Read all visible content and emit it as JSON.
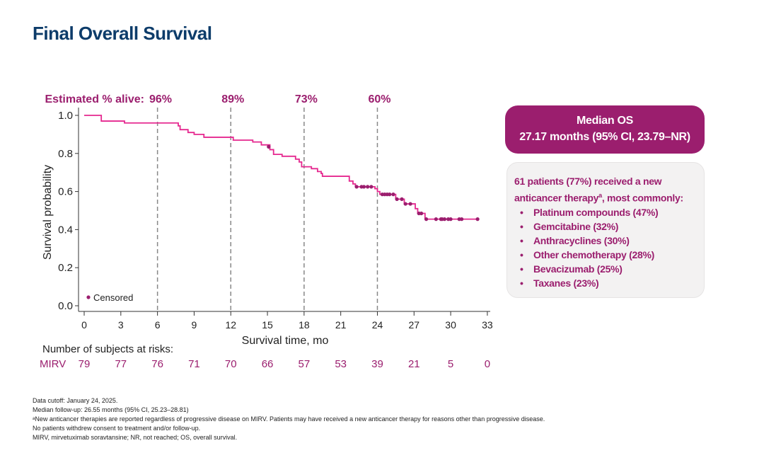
{
  "title": "Final Overall Survival",
  "chart_data": {
    "type": "line",
    "subtype": "kaplan-meier",
    "xlabel": "Survival time, mo",
    "ylabel": "Survival probability",
    "xlim": [
      0,
      33
    ],
    "ylim": [
      0,
      1
    ],
    "xticks": [
      0,
      3,
      6,
      9,
      12,
      15,
      18,
      21,
      24,
      27,
      30,
      33
    ],
    "yticks": [
      "0.0",
      "0.2",
      "0.4",
      "0.6",
      "0.8",
      "1.0"
    ],
    "grid": false,
    "line_color": "#e5288f",
    "censor_color": "#9b1e6e",
    "steps": [
      [
        0,
        1.0
      ],
      [
        1.4,
        0.97
      ],
      [
        3.3,
        0.96
      ],
      [
        7.7,
        0.945
      ],
      [
        7.85,
        0.925
      ],
      [
        8.5,
        0.91
      ],
      [
        9.0,
        0.9
      ],
      [
        9.8,
        0.885
      ],
      [
        12.2,
        0.87
      ],
      [
        13.8,
        0.86
      ],
      [
        14.5,
        0.845
      ],
      [
        15.2,
        0.82
      ],
      [
        15.5,
        0.795
      ],
      [
        16.2,
        0.785
      ],
      [
        17.3,
        0.77
      ],
      [
        17.6,
        0.755
      ],
      [
        17.8,
        0.73
      ],
      [
        18.6,
        0.72
      ],
      [
        19.1,
        0.705
      ],
      [
        19.4,
        0.695
      ],
      [
        19.5,
        0.68
      ],
      [
        21.7,
        0.655
      ],
      [
        22.0,
        0.64
      ],
      [
        22.2,
        0.625
      ],
      [
        23.8,
        0.615
      ],
      [
        24.0,
        0.6
      ],
      [
        24.2,
        0.585
      ],
      [
        25.5,
        0.56
      ],
      [
        26.2,
        0.535
      ],
      [
        27.1,
        0.51
      ],
      [
        27.3,
        0.485
      ],
      [
        27.9,
        0.455
      ],
      [
        32.2,
        0.455
      ]
    ],
    "censored": [
      [
        15.1,
        0.835
      ],
      [
        22.3,
        0.625
      ],
      [
        22.7,
        0.625
      ],
      [
        22.9,
        0.625
      ],
      [
        23.2,
        0.625
      ],
      [
        23.5,
        0.625
      ],
      [
        24.4,
        0.585
      ],
      [
        24.6,
        0.585
      ],
      [
        24.8,
        0.585
      ],
      [
        25.0,
        0.585
      ],
      [
        25.3,
        0.585
      ],
      [
        25.6,
        0.56
      ],
      [
        26.0,
        0.56
      ],
      [
        26.3,
        0.535
      ],
      [
        26.7,
        0.535
      ],
      [
        27.4,
        0.485
      ],
      [
        27.6,
        0.485
      ],
      [
        28.0,
        0.455
      ],
      [
        28.8,
        0.455
      ],
      [
        29.2,
        0.455
      ],
      [
        29.3,
        0.455
      ],
      [
        29.5,
        0.455
      ],
      [
        29.8,
        0.455
      ],
      [
        30.0,
        0.455
      ],
      [
        30.7,
        0.455
      ],
      [
        30.9,
        0.455
      ],
      [
        32.2,
        0.455
      ]
    ],
    "reference_lines": [
      {
        "x": 6,
        "label": "96%"
      },
      {
        "x": 12,
        "label": "89%"
      },
      {
        "x": 18,
        "label": "73%"
      },
      {
        "x": 24,
        "label": "60%"
      }
    ],
    "annotation_prefix": "Estimated % alive:",
    "legend": {
      "label": "Censored",
      "placement": "bottom-left"
    },
    "risk_table": {
      "title": "Number of subjects at risks:",
      "arm": "MIRV",
      "values": [
        79,
        77,
        76,
        71,
        70,
        66,
        57,
        53,
        39,
        21,
        5,
        0
      ]
    }
  },
  "median_box": {
    "line1": "Median OS",
    "line2": "27.17 months (95% CI, 23.79–NR)"
  },
  "therapy_box": {
    "intro1": "61 patients (77%) received a new",
    "intro2a": "anticancer therapy",
    "intro2sup": "a",
    "intro2b": ", most commonly:",
    "items": [
      "Platinum compounds (47%)",
      "Gemcitabine (32%)",
      "Anthracyclines (30%)",
      "Other chemotherapy (28%)",
      "Bevacizumab (25%)",
      "Taxanes (23%)"
    ]
  },
  "footnotes": [
    "Data cutoff: January 24, 2025.",
    "Median follow-up: 26.55 months (95% CI, 25.23–28.81)",
    "ᵃNew anticancer therapies are reported regardless of progressive disease on MIRV. Patients may have received a new anticancer therapy for reasons other than progressive disease.",
    "No patients withdrew consent to treatment and/or follow-up.",
    "MIRV, mirvetuximab soravtansine; NR, not reached; OS, overall survival."
  ]
}
